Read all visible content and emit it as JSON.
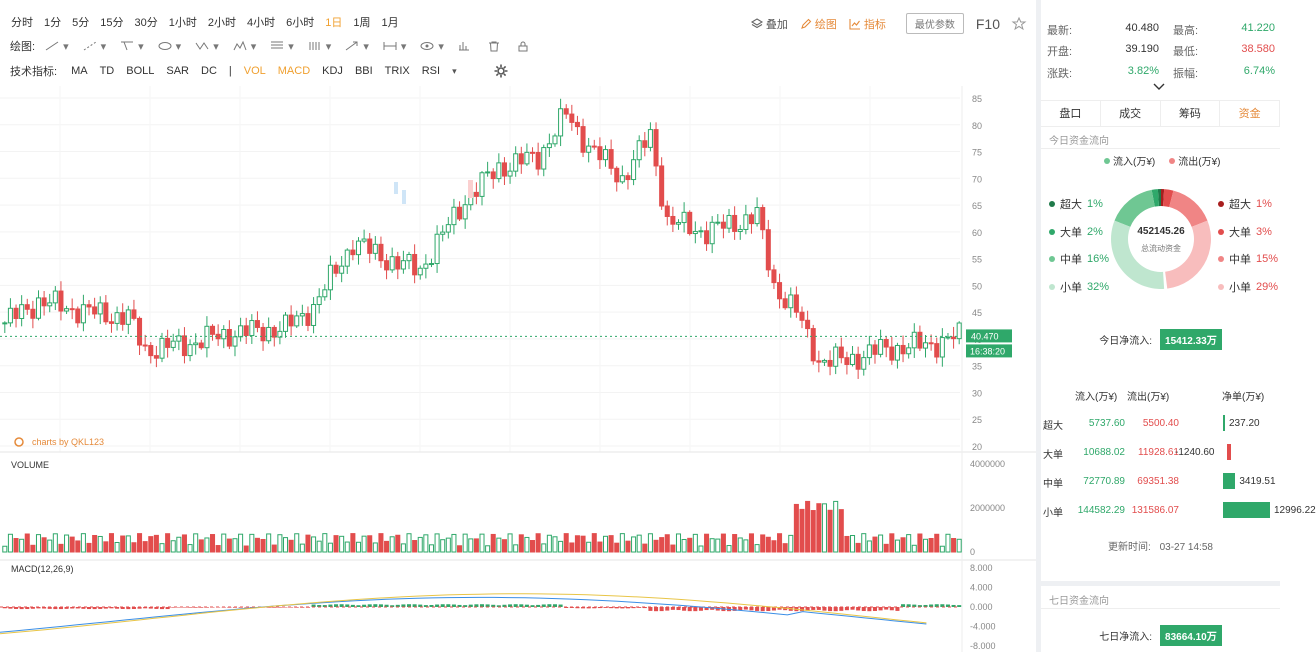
{
  "toolbar": {
    "timeframes": [
      "分时",
      "1分",
      "5分",
      "15分",
      "30分",
      "1小时",
      "2小时",
      "4小时",
      "6小时",
      "1日",
      "1周",
      "1月"
    ],
    "active_timeframe": "1日",
    "overlay_label": "叠加",
    "draw_label": "绘图",
    "indicator_label": "指标",
    "best_params_label": "最优参数",
    "f10_label": "F10"
  },
  "draw_bar": {
    "label": "绘图:"
  },
  "indicator_bar": {
    "label": "技术指标:",
    "items": [
      "MA",
      "TD",
      "BOLL",
      "SAR",
      "DC",
      "|",
      "VOL",
      "MACD",
      "KDJ",
      "BBI",
      "TRIX",
      "RSI"
    ],
    "active": [
      "VOL",
      "MACD"
    ]
  },
  "chart": {
    "watermark": "charts by QKL123",
    "price_axis": [
      "85",
      "80",
      "75",
      "70",
      "65",
      "60",
      "55",
      "50",
      "45",
      "40",
      "35",
      "30",
      "25",
      "20"
    ],
    "current_price": "40.470",
    "current_time": "16:38:20",
    "volume_label": "VOLUME",
    "volume_axis": [
      "4000000",
      "2000000",
      "0"
    ],
    "macd_label": "MACD(12,26,9)",
    "macd_axis": [
      "8.000",
      "4.000",
      "0.000",
      "-4.000",
      "-8.000"
    ],
    "colors": {
      "up": "#2fa86a",
      "down": "#e24d4d",
      "dif": "#3a8ee6",
      "dea": "#e8c547"
    }
  },
  "quote": {
    "latest_label": "最新:",
    "latest": "40.480",
    "high_label": "最高:",
    "high": "41.220",
    "open_label": "开盘:",
    "open": "39.190",
    "low_label": "最低:",
    "low": "38.580",
    "change_label": "涨跌:",
    "change": "3.82%",
    "amplitude_label": "振幅:",
    "amplitude": "6.74%"
  },
  "tabs": [
    "盘口",
    "成交",
    "筹码",
    "资金"
  ],
  "active_tab": "资金",
  "fund_flow": {
    "today_title": "今日资金流向",
    "inflow_legend": "流入(万¥)",
    "outflow_legend": "流出(万¥)",
    "total": "452145.26",
    "total_label": "总流动资金",
    "left_labels": [
      {
        "name": "超大",
        "pct": "1%",
        "color": "#1f7a4a"
      },
      {
        "name": "大单",
        "pct": "2%",
        "color": "#2fa86a"
      },
      {
        "name": "中单",
        "pct": "16%",
        "color": "#6fc793"
      },
      {
        "name": "小单",
        "pct": "32%",
        "color": "#bfe6cf"
      }
    ],
    "right_labels": [
      {
        "name": "超大",
        "pct": "1%",
        "color": "#a81e1e"
      },
      {
        "name": "大单",
        "pct": "3%",
        "color": "#e24d4d"
      },
      {
        "name": "中单",
        "pct": "15%",
        "color": "#f08585"
      },
      {
        "name": "小单",
        "pct": "29%",
        "color": "#f8bdbd"
      }
    ],
    "net_label": "今日净流入:",
    "net_value": "15412.33万",
    "table_headers": [
      "流入(万¥)",
      "流出(万¥)",
      "净单(万¥)"
    ],
    "rows": [
      {
        "name": "超大",
        "in": "5737.60",
        "out": "5500.40",
        "net": "237.20"
      },
      {
        "name": "大单",
        "in": "10688.02",
        "out": "11928.61",
        "net": "-1240.60"
      },
      {
        "name": "中单",
        "in": "72770.89",
        "out": "69351.38",
        "net": "3419.51"
      },
      {
        "name": "小单",
        "in": "144582.29",
        "out": "131586.07",
        "net": "12996.22"
      }
    ],
    "updated_label": "更新时间:",
    "updated": "03-27 14:58",
    "week_title": "七日资金流向",
    "week_net_label": "七日净流入:",
    "week_net_value": "83664.10万"
  }
}
